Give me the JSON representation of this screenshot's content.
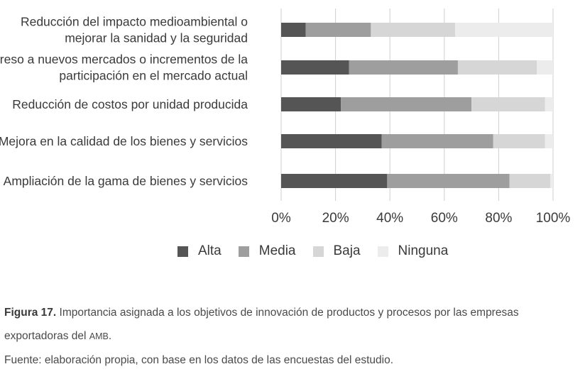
{
  "chart_data": {
    "type": "bar",
    "orientation": "horizontal",
    "stacked": true,
    "categories": [
      [
        "Reducción del impacto medioambiental o",
        "mejorar la sanidad y la seguridad"
      ],
      [
        "Ingreso a nuevos mercados o incrementos de la",
        "participación en el mercado actual"
      ],
      [
        "Reducción de costos por unidad producida"
      ],
      [
        "Mejora en la calidad de los bienes y servicios"
      ],
      [
        "Ampliación de la gama de bienes y servicios"
      ]
    ],
    "series": [
      {
        "name": "Alta",
        "color": "#555555",
        "values": [
          9,
          25,
          22,
          37,
          39
        ]
      },
      {
        "name": "Media",
        "color": "#9e9e9e",
        "values": [
          24,
          40,
          48,
          41,
          45
        ]
      },
      {
        "name": "Baja",
        "color": "#d6d6d6",
        "values": [
          31,
          29,
          27,
          19,
          15
        ]
      },
      {
        "name": "Ninguna",
        "color": "#ececec",
        "values": [
          36,
          6,
          3,
          3,
          1
        ]
      }
    ],
    "xlim": [
      0,
      100
    ],
    "xticks": [
      0,
      20,
      40,
      60,
      80,
      100
    ],
    "xtick_labels": [
      "0%",
      "20%",
      "40%",
      "60%",
      "80%",
      "100%"
    ],
    "grid": "vertical",
    "legend_position": "bottom"
  },
  "caption": {
    "figure_number": "Figura 17.",
    "text_before_abbr": " Importancia asignada a los objetivos de innovación de productos y procesos por las empresas exportadoras del ",
    "abbr": "AMB",
    "text_after_abbr": ".",
    "source": "Fuente: elaboración propia, con base en los datos de las encuestas del estudio."
  }
}
